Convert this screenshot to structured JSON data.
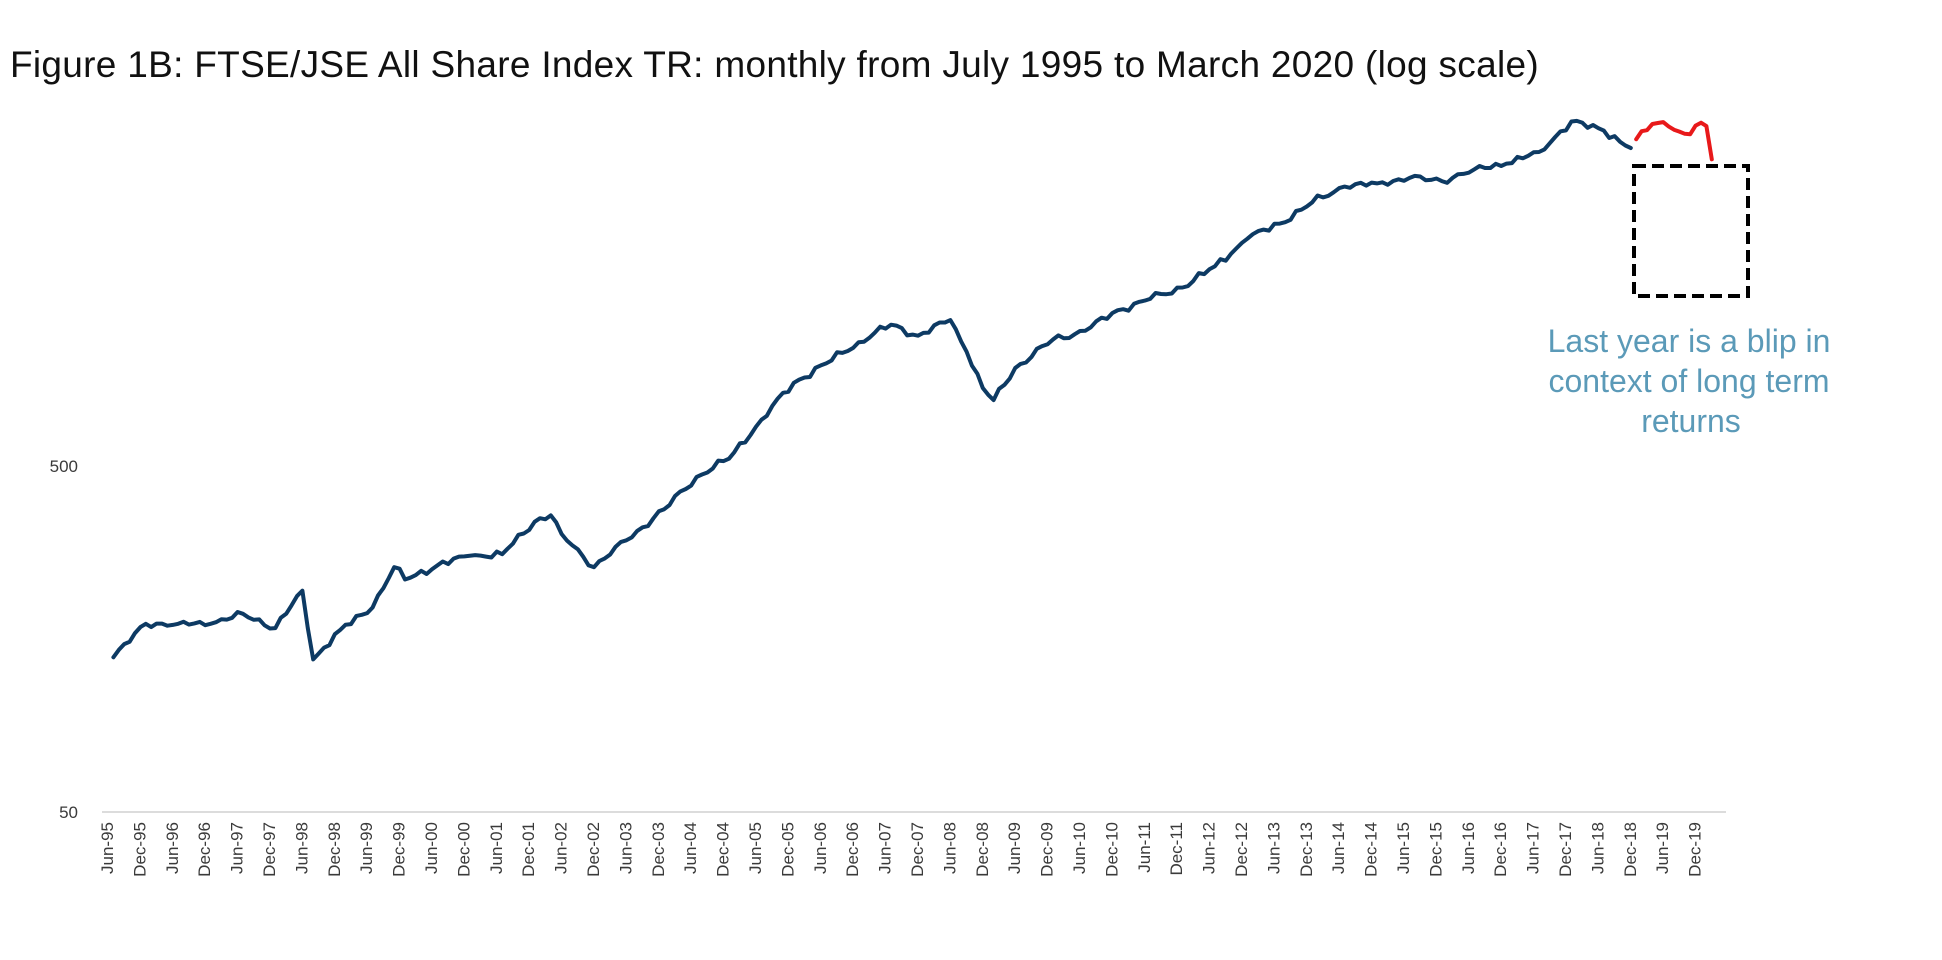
{
  "chart_data": {
    "type": "line",
    "title": "Figure 1B:  FTSE/JSE All Share Index TR:  monthly from July 1995 to March 2020 (log scale)",
    "xlabel": "",
    "ylabel": "",
    "y_scale": "log",
    "ylim": [
      50,
      10000
    ],
    "y_ticks": [
      "50",
      "500"
    ],
    "grid": false,
    "legend": "none",
    "x_ticks": [
      "Jun-95",
      "Dec-95",
      "Jun-96",
      "Dec-96",
      "Jun-97",
      "Dec-97",
      "Jun-98",
      "Dec-98",
      "Jun-99",
      "Dec-99",
      "Jun-00",
      "Dec-00",
      "Jun-01",
      "Dec-01",
      "Jun-02",
      "Dec-02",
      "Jun-03",
      "Dec-03",
      "Jun-04",
      "Dec-04",
      "Jun-05",
      "Dec-05",
      "Jun-06",
      "Dec-06",
      "Jun-07",
      "Dec-07",
      "Jun-08",
      "Dec-08",
      "Jun-09",
      "Dec-09",
      "Jun-10",
      "Dec-10",
      "Jun-11",
      "Dec-11",
      "Jun-12",
      "Dec-12",
      "Jun-13",
      "Dec-13",
      "Jun-14",
      "Dec-14",
      "Jun-15",
      "Dec-15",
      "Jun-16",
      "Dec-16",
      "Jun-17",
      "Dec-17",
      "Jun-18",
      "Dec-18",
      "Jun-19",
      "Dec-19"
    ],
    "series": [
      {
        "color": "#0d3a63",
        "points": [
          [
            "Jul-95",
            140
          ],
          [
            "Jan-96",
            175
          ],
          [
            "Jul-96",
            175
          ],
          [
            "Jan-97",
            175
          ],
          [
            "Jul-97",
            187
          ],
          [
            "Jan-98",
            170
          ],
          [
            "Jun-98",
            218
          ],
          [
            "Aug-98",
            138
          ],
          [
            "Jan-99",
            168
          ],
          [
            "Jul-99",
            195
          ],
          [
            "Nov-99",
            255
          ],
          [
            "Jan-00",
            235
          ],
          [
            "Jul-00",
            258
          ],
          [
            "Jan-01",
            275
          ],
          [
            "Jul-01",
            278
          ],
          [
            "Jan-02",
            345
          ],
          [
            "Apr-02",
            360
          ],
          [
            "Jun-02",
            318
          ],
          [
            "Dec-02",
            255
          ],
          [
            "Jun-03",
            305
          ],
          [
            "Jan-04",
            375
          ],
          [
            "Jul-04",
            465
          ],
          [
            "Jan-05",
            525
          ],
          [
            "Jul-05",
            680
          ],
          [
            "Jan-06",
            870
          ],
          [
            "Jul-06",
            990
          ],
          [
            "Jan-07",
            1140
          ],
          [
            "Jul-07",
            1280
          ],
          [
            "Dec-07",
            1190
          ],
          [
            "Jun-08",
            1320
          ],
          [
            "Sep-08",
            1070
          ],
          [
            "Dec-08",
            840
          ],
          [
            "Feb-09",
            775
          ],
          [
            "Jun-09",
            960
          ],
          [
            "Jan-10",
            1160
          ],
          [
            "Jul-10",
            1230
          ],
          [
            "Jan-11",
            1410
          ],
          [
            "Jul-11",
            1520
          ],
          [
            "Jan-12",
            1640
          ],
          [
            "Jul-12",
            1890
          ],
          [
            "Jan-13",
            2270
          ],
          [
            "Jul-13",
            2510
          ],
          [
            "Jan-14",
            2890
          ],
          [
            "Jul-14",
            3210
          ],
          [
            "Jan-15",
            3280
          ],
          [
            "Jul-15",
            3400
          ],
          [
            "Jan-16",
            3330
          ],
          [
            "Jul-16",
            3600
          ],
          [
            "Jan-17",
            3740
          ],
          [
            "Jul-17",
            4040
          ],
          [
            "Jan-18",
            4950
          ],
          [
            "Jul-18",
            4660
          ],
          [
            "Dec-18",
            4150
          ]
        ]
      },
      {
        "color": "#e8191a",
        "points": [
          [
            "Jan-19",
            4400
          ],
          [
            "Apr-19",
            4870
          ],
          [
            "Jul-19",
            4790
          ],
          [
            "Oct-19",
            4560
          ],
          [
            "Jan-20",
            4910
          ],
          [
            "Feb-20",
            4800
          ],
          [
            "Mar-20",
            3850
          ]
        ]
      }
    ],
    "annotation": {
      "lines": [
        "Last year is a blip in",
        "context of long term",
        "returns"
      ],
      "color": "#5b9ab8",
      "box_style": "dashed"
    }
  }
}
